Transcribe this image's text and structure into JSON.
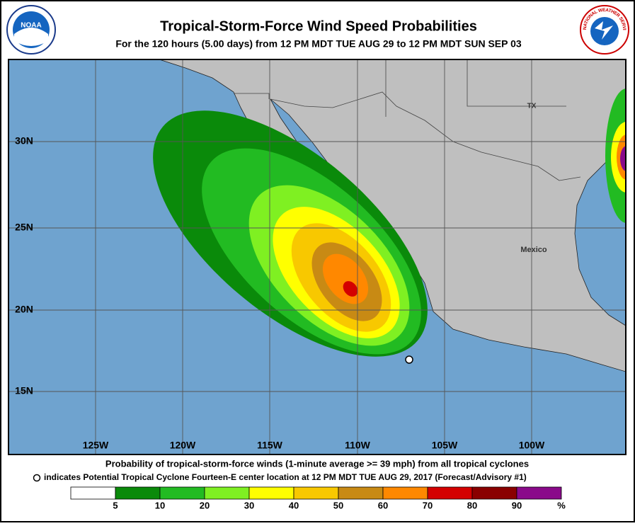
{
  "header": {
    "title": "Tropical-Storm-Force Wind Speed Probabilities",
    "subtitle": "For the 120 hours (5.00 days) from 12 PM MDT TUE AUG 29 to 12 PM MDT SUN SEP 03",
    "noaa_logo": "NOAA",
    "nws_logo": "NATIONAL WEATHER SERVICE"
  },
  "map": {
    "lat_labels": [
      "30N",
      "25N",
      "20N",
      "15N"
    ],
    "lon_labels": [
      "125W",
      "120W",
      "115W",
      "110W",
      "105W",
      "100W"
    ],
    "place_labels": [
      "TX",
      "Mexico"
    ]
  },
  "footer": {
    "line1": "Probability of tropical-storm-force winds (1-minute average >= 39 mph) from all tropical cyclones",
    "line2": "indicates Potential Tropical Cyclone Fourteen-E center location at 12 PM MDT TUE AUG 29, 2017 (Forecast/Advisory #1)"
  },
  "legend": {
    "colors": [
      "#ffffff",
      "#0a8a0a",
      "#22bb22",
      "#7ff022",
      "#ffff00",
      "#f8c800",
      "#c88a14",
      "#ff8800",
      "#d40000",
      "#8a0000",
      "#8a0a8a"
    ],
    "labels": [
      "5",
      "10",
      "20",
      "30",
      "40",
      "50",
      "60",
      "70",
      "80",
      "90",
      "%"
    ]
  }
}
